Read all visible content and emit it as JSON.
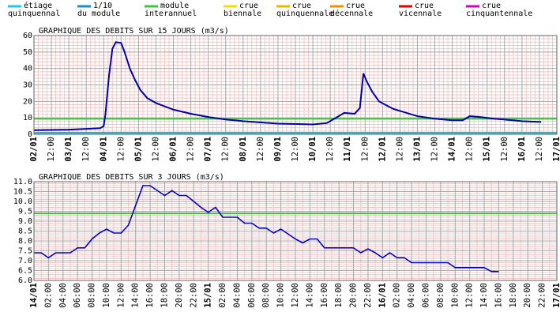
{
  "legend": [
    {
      "label": [
        "étiage",
        "quinquennal"
      ],
      "color": "#22c8e8"
    },
    {
      "label": [
        "1/10",
        "du module"
      ],
      "color": "#1a8fc0"
    },
    {
      "label": [
        "module",
        "interannuel"
      ],
      "color": "#33cc33"
    },
    {
      "label": [
        "crue",
        "biennale"
      ],
      "color": "#f0e000"
    },
    {
      "label": [
        "crue",
        "quinquennale"
      ],
      "color": "#e6b800"
    },
    {
      "label": [
        "crue",
        "décennale"
      ],
      "color": "#e69500"
    },
    {
      "label": [
        "crue",
        "vicennale"
      ],
      "color": "#e00000"
    },
    {
      "label": [
        "crue",
        "cinquantennale"
      ],
      "color": "#d000d0"
    }
  ],
  "chart_data": [
    {
      "type": "line",
      "title": "GRAPHIQUE DES DEBITS SUR 15 JOURS (m3/s)",
      "reference_lines": [
        {
          "value": 9.4,
          "color": "#33cc33"
        },
        {
          "value": 0.94,
          "color": "#1a8fc0"
        },
        {
          "value": 0.7,
          "color": "#22c8e8"
        }
      ],
      "x": [
        2,
        3,
        3.5,
        3.9,
        4.0,
        4.05,
        4.15,
        4.25,
        4.35,
        4.5,
        4.6,
        4.75,
        4.9,
        5.05,
        5.25,
        5.5,
        6.0,
        6.5,
        7.0,
        7.5,
        8.0,
        9.0,
        10.0,
        10.4,
        10.7,
        10.9,
        11.2,
        11.35,
        11.45,
        11.55,
        11.7,
        11.9,
        12.3,
        13.0,
        13.5,
        14.0,
        14.3,
        14.5,
        14.8,
        15.2,
        16.0,
        16.55
      ],
      "series": [
        {
          "color": "#0000a8",
          "values": [
            2.5,
            2.8,
            3.3,
            3.7,
            5,
            12,
            35,
            52,
            56,
            55.5,
            50,
            40,
            33,
            27,
            22,
            19,
            15,
            12.5,
            10.5,
            9,
            8,
            6.5,
            6,
            6.8,
            10.5,
            13,
            12.5,
            16,
            37,
            32,
            26,
            20,
            15.5,
            11,
            9.5,
            8.5,
            8.5,
            11,
            10.5,
            9.5,
            8,
            7.5
          ]
        }
      ],
      "xlim": [
        2,
        17
      ],
      "xticks": [
        {
          "value": 2,
          "label": "02/01"
        },
        {
          "value": 2.5,
          "label": "12:00"
        },
        {
          "value": 3,
          "label": "03/01"
        },
        {
          "value": 3.5,
          "label": "12:00"
        },
        {
          "value": 4,
          "label": "04/01"
        },
        {
          "value": 4.5,
          "label": "12:00"
        },
        {
          "value": 5,
          "label": "05/01"
        },
        {
          "value": 5.5,
          "label": "12:00"
        },
        {
          "value": 6,
          "label": "06/01"
        },
        {
          "value": 6.5,
          "label": "12:00"
        },
        {
          "value": 7,
          "label": "07/01"
        },
        {
          "value": 7.5,
          "label": "12:00"
        },
        {
          "value": 8,
          "label": "08/01"
        },
        {
          "value": 8.5,
          "label": "12:00"
        },
        {
          "value": 9,
          "label": "09/01"
        },
        {
          "value": 9.5,
          "label": "12:00"
        },
        {
          "value": 10,
          "label": "10/01"
        },
        {
          "value": 10.5,
          "label": "12:00"
        },
        {
          "value": 11,
          "label": "11/01"
        },
        {
          "value": 11.5,
          "label": "12:00"
        },
        {
          "value": 12,
          "label": "12/01"
        },
        {
          "value": 12.5,
          "label": "12:00"
        },
        {
          "value": 13,
          "label": "13/01"
        },
        {
          "value": 13.5,
          "label": "12:00"
        },
        {
          "value": 14,
          "label": "14/01"
        },
        {
          "value": 14.5,
          "label": "12:00"
        },
        {
          "value": 15,
          "label": "15/01"
        },
        {
          "value": 15.5,
          "label": "12:00"
        },
        {
          "value": 16,
          "label": "16/01"
        },
        {
          "value": 16.5,
          "label": "12:00"
        },
        {
          "value": 17,
          "label": "17/01"
        }
      ],
      "ylim": [
        0,
        60
      ],
      "yticks": [
        0,
        10,
        20,
        30,
        40,
        50,
        60
      ],
      "grid": true
    },
    {
      "type": "line",
      "title": "GRAPHIQUE DES DEBITS SUR 3 JOURS (m3/s)",
      "reference_lines": [
        {
          "value": 9.4,
          "color": "#33cc33"
        }
      ],
      "x": [
        14,
        14.0417,
        14.0833,
        14.125,
        14.2083,
        14.25,
        14.2917,
        14.3333,
        14.375,
        14.4167,
        14.4583,
        14.5,
        14.5417,
        14.5833,
        14.625,
        14.6667,
        14.7083,
        14.75,
        14.7917,
        14.8333,
        14.875,
        14.9167,
        14.9583,
        15,
        15.0417,
        15.0833,
        15.1667,
        15.2083,
        15.25,
        15.2917,
        15.3333,
        15.375,
        15.4167,
        15.4583,
        15.5,
        15.5417,
        15.5833,
        15.625,
        15.6667,
        15.8333,
        15.875,
        15.9167,
        15.9583,
        16,
        16.0417,
        16.0833,
        16.125,
        16.1667,
        16.375,
        16.4167,
        16.5833,
        16.625,
        16.6667
      ],
      "series": [
        {
          "color": "#0000c8",
          "values": [
            7.4,
            7.4,
            7.15,
            7.4,
            7.4,
            7.65,
            7.65,
            8.1,
            8.4,
            8.6,
            8.4,
            8.4,
            8.8,
            9.8,
            10.8,
            10.8,
            10.55,
            10.3,
            10.55,
            10.3,
            10.3,
            10.0,
            9.7,
            9.45,
            9.7,
            9.2,
            9.2,
            8.9,
            8.9,
            8.65,
            8.65,
            8.4,
            8.6,
            8.35,
            8.1,
            7.9,
            8.1,
            8.1,
            7.65,
            7.65,
            7.4,
            7.6,
            7.4,
            7.15,
            7.4,
            7.15,
            7.15,
            6.9,
            6.9,
            6.65,
            6.65,
            6.45,
            6.45
          ]
        }
      ],
      "xlim": [
        14,
        17
      ],
      "xticks": [
        {
          "value": 14,
          "label": "14/01"
        },
        {
          "value": 14.0833,
          "label": "02:00"
        },
        {
          "value": 14.1667,
          "label": "04:00"
        },
        {
          "value": 14.25,
          "label": "06:00"
        },
        {
          "value": 14.3333,
          "label": "08:00"
        },
        {
          "value": 14.4167,
          "label": "10:00"
        },
        {
          "value": 14.5,
          "label": "12:00"
        },
        {
          "value": 14.5833,
          "label": "14:00"
        },
        {
          "value": 14.6667,
          "label": "16:00"
        },
        {
          "value": 14.75,
          "label": "18:00"
        },
        {
          "value": 14.8333,
          "label": "20:00"
        },
        {
          "value": 14.9167,
          "label": "22:00"
        },
        {
          "value": 15,
          "label": "15/01"
        },
        {
          "value": 15.0833,
          "label": "02:00"
        },
        {
          "value": 15.1667,
          "label": "04:00"
        },
        {
          "value": 15.25,
          "label": "06:00"
        },
        {
          "value": 15.3333,
          "label": "08:00"
        },
        {
          "value": 15.4167,
          "label": "10:00"
        },
        {
          "value": 15.5,
          "label": "12:00"
        },
        {
          "value": 15.5833,
          "label": "14:00"
        },
        {
          "value": 15.6667,
          "label": "16:00"
        },
        {
          "value": 15.75,
          "label": "18:00"
        },
        {
          "value": 15.8333,
          "label": "20:00"
        },
        {
          "value": 15.9167,
          "label": "22:00"
        },
        {
          "value": 16,
          "label": "16/01"
        },
        {
          "value": 16.0833,
          "label": "02:00"
        },
        {
          "value": 16.1667,
          "label": "04:00"
        },
        {
          "value": 16.25,
          "label": "06:00"
        },
        {
          "value": 16.3333,
          "label": "08:00"
        },
        {
          "value": 16.4167,
          "label": "10:00"
        },
        {
          "value": 16.5,
          "label": "12:00"
        },
        {
          "value": 16.5833,
          "label": "14:00"
        },
        {
          "value": 16.6667,
          "label": "16:00"
        },
        {
          "value": 16.75,
          "label": "18:00"
        },
        {
          "value": 16.8333,
          "label": "20:00"
        },
        {
          "value": 16.9167,
          "label": "22:00"
        },
        {
          "value": 17,
          "label": "17/01"
        }
      ],
      "ylim": [
        6,
        11
      ],
      "yticks": [
        {
          "value": 6,
          "label": "6.0"
        },
        6.5,
        {
          "value": 7,
          "label": "7.0"
        },
        7.5,
        {
          "value": 8,
          "label": "8.0"
        },
        8.5,
        {
          "value": 9,
          "label": "9.0"
        },
        9.5,
        {
          "value": 10,
          "label": "10.0"
        },
        10.5,
        {
          "value": 11,
          "label": "11.0"
        }
      ],
      "grid": true
    }
  ]
}
